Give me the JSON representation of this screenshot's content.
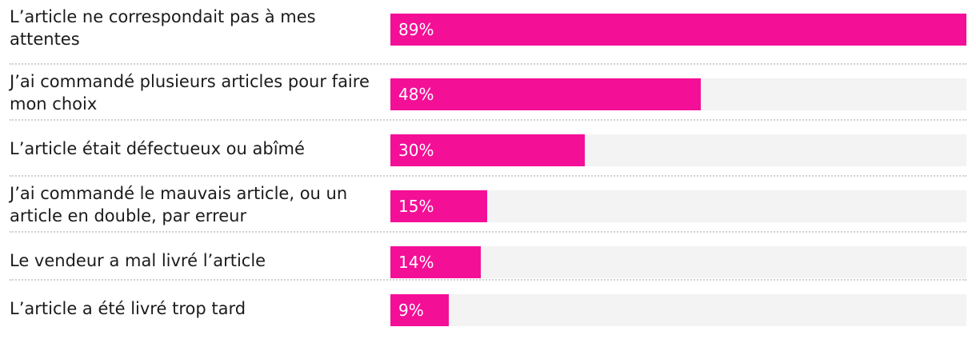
{
  "chart_data": {
    "type": "bar",
    "orientation": "horizontal",
    "categories": [
      "L’article ne correspondait pas à mes attentes",
      "J’ai commandé plusieurs articles pour faire mon choix",
      "L’article était défectueux ou abîmé",
      "J’ai commandé le mauvais article, ou un article en double, par erreur",
      "Le vendeur a mal livré l’article",
      "L’article a été livré trop tard"
    ],
    "values": [
      89,
      48,
      30,
      15,
      14,
      9
    ],
    "value_labels": [
      "89%",
      "48%",
      "30%",
      "15%",
      "14%",
      "9%"
    ],
    "xlim": [
      0,
      89
    ],
    "grid": false,
    "legend": "none",
    "bar_color": "#f40f97",
    "track_color": "#f3f3f3",
    "separator_color": "#cfcfcf",
    "text_color": "#1b1b1b"
  }
}
